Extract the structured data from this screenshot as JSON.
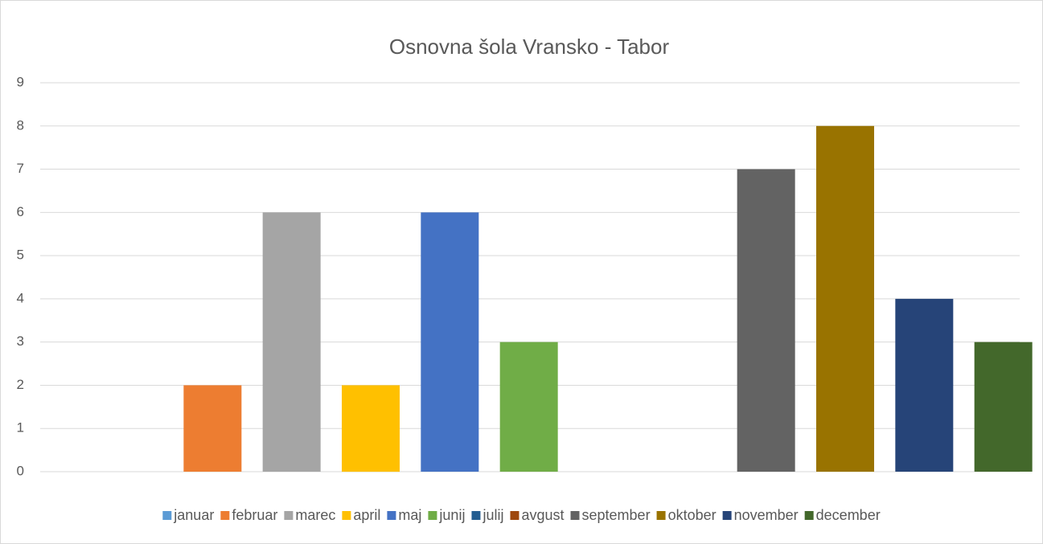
{
  "chart_data": {
    "type": "bar",
    "title": "Osnovna šola Vransko - Tabor",
    "series": [
      {
        "name": "januar",
        "color": "#5b9bd5",
        "values": [
          0
        ]
      },
      {
        "name": "februar",
        "color": "#ed7d31",
        "values": [
          2
        ]
      },
      {
        "name": "marec",
        "color": "#a5a5a5",
        "values": [
          6
        ]
      },
      {
        "name": "april",
        "color": "#ffc000",
        "values": [
          2
        ]
      },
      {
        "name": "maj",
        "color": "#4472c4",
        "values": [
          6
        ]
      },
      {
        "name": "junij",
        "color": "#70ad47",
        "values": [
          3
        ]
      },
      {
        "name": "julij",
        "color": "#255e91",
        "values": [
          0
        ]
      },
      {
        "name": "avgust",
        "color": "#9e480e",
        "values": [
          0
        ]
      },
      {
        "name": "september",
        "color": "#636363",
        "values": [
          7
        ]
      },
      {
        "name": "oktober",
        "color": "#997300",
        "values": [
          8
        ]
      },
      {
        "name": "november",
        "color": "#264478",
        "values": [
          4
        ]
      },
      {
        "name": "december",
        "color": "#43682b",
        "values": [
          3
        ]
      }
    ],
    "ylim": [
      0,
      9
    ],
    "yticks": [
      0,
      1,
      2,
      3,
      4,
      5,
      6,
      7,
      8,
      9
    ],
    "grid": true,
    "legend": "bottom"
  }
}
